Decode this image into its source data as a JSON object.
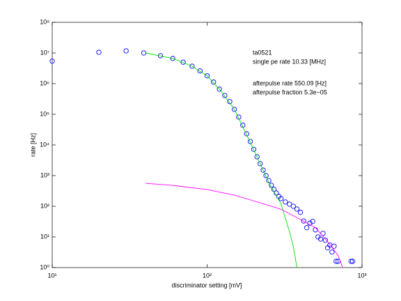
{
  "chart_data": {
    "type": "scatter",
    "xlabel": "discriminator setting [mV]",
    "ylabel": "rate [Hz]",
    "xscale": "log",
    "yscale": "log",
    "xlim": [
      10,
      1000
    ],
    "ylim": [
      1,
      100000000
    ],
    "xticks": [
      {
        "value": 10,
        "label": "10¹"
      },
      {
        "value": 100,
        "label": "10²"
      },
      {
        "value": 1000,
        "label": "10³"
      }
    ],
    "yticks": [
      {
        "value": 1,
        "label": "10⁰"
      },
      {
        "value": 10,
        "label": "10¹"
      },
      {
        "value": 100,
        "label": "10²"
      },
      {
        "value": 1000,
        "label": "10³"
      },
      {
        "value": 10000,
        "label": "10⁴"
      },
      {
        "value": 100000,
        "label": "10⁵"
      },
      {
        "value": 1000000,
        "label": "10⁶"
      },
      {
        "value": 10000000,
        "label": "10⁷"
      },
      {
        "value": 100000000,
        "label": "10⁸"
      }
    ],
    "annotations": [
      "ta0521",
      "single pe rate 10.33 [MHz]",
      "afterpulse rate 550.09 [Hz]",
      "afterpulse fraction 5.3e−05"
    ],
    "series": [
      {
        "type": "scatter",
        "color": "#0000ff",
        "x": [
          10,
          20,
          30,
          39,
          50,
          60,
          70,
          80,
          90,
          100,
          110,
          120,
          130,
          140,
          150,
          160,
          170,
          180,
          190,
          200,
          210,
          220,
          230,
          240,
          250,
          260,
          270,
          280,
          290,
          300,
          320,
          340,
          360,
          380,
          400,
          420,
          440,
          460,
          480,
          500,
          520,
          540,
          560,
          580,
          600,
          620,
          640,
          660,
          680,
          700,
          850,
          870
        ],
        "values": [
          5400000,
          10500000,
          11700000,
          10000000,
          8100000,
          6600000,
          5000000,
          3700000,
          2600000,
          1800000,
          1120000,
          660000,
          410000,
          260000,
          145000,
          81000,
          44000,
          23000,
          12900,
          7200,
          4100,
          2450,
          1510,
          1000,
          690,
          480,
          355,
          270,
          210,
          178,
          138,
          117,
          100,
          81,
          63,
          33,
          20,
          28,
          32,
          17,
          10,
          8.5,
          13,
          7.8,
          4.4,
          5.4,
          3.2,
          5,
          1.6,
          1.6,
          1.6,
          1.6
        ]
      },
      {
        "type": "line",
        "color": "#00dd00",
        "x": [
          40,
          50,
          60,
          80,
          100,
          120,
          150,
          200,
          250,
          300,
          340,
          360,
          380
        ],
        "values": [
          10000000,
          8000000,
          6600000,
          3700000,
          1800000,
          660000,
          145000,
          7000,
          600,
          120,
          15,
          5,
          1
        ]
      },
      {
        "type": "line",
        "color": "#ff00ff",
        "x": [
          40,
          60,
          100,
          150,
          200,
          300,
          400,
          500,
          600,
          700,
          750
        ],
        "values": [
          560,
          480,
          350,
          230,
          150,
          80,
          37,
          20,
          7,
          2.5,
          1
        ]
      }
    ]
  }
}
